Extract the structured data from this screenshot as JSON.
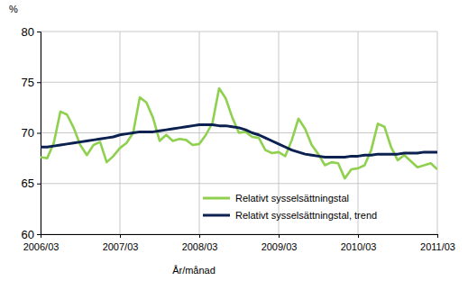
{
  "chart_data": {
    "type": "line",
    "y_label": "%",
    "x_label": "År/månad",
    "categories": [
      "2006/03",
      null,
      null,
      null,
      null,
      null,
      null,
      null,
      null,
      null,
      null,
      null,
      "2007/03",
      null,
      null,
      null,
      null,
      null,
      null,
      null,
      null,
      null,
      null,
      null,
      "2008/03",
      null,
      null,
      null,
      null,
      null,
      null,
      null,
      null,
      null,
      null,
      null,
      "2009/03",
      null,
      null,
      null,
      null,
      null,
      null,
      null,
      null,
      null,
      null,
      null,
      "2010/03",
      null,
      null,
      null,
      null,
      null,
      null,
      null,
      null,
      null,
      null,
      null,
      "2011/03"
    ],
    "series": [
      {
        "name": "Relativt sysselsättningstal",
        "color": "#8fd14f",
        "values": [
          67.6,
          67.5,
          69.0,
          72.1,
          71.8,
          70.5,
          68.8,
          67.8,
          68.8,
          69.1,
          67.1,
          67.7,
          68.5,
          69.0,
          70.0,
          73.5,
          73.0,
          71.5,
          69.2,
          69.8,
          69.2,
          69.4,
          69.3,
          68.8,
          68.9,
          69.8,
          71.0,
          74.4,
          73.4,
          71.5,
          70.0,
          70.1,
          69.6,
          69.5,
          68.3,
          68.0,
          68.1,
          67.7,
          69.3,
          71.4,
          70.4,
          68.8,
          67.9,
          66.8,
          67.1,
          67.0,
          65.5,
          66.4,
          66.5,
          66.8,
          68.3,
          70.9,
          70.6,
          68.6,
          67.3,
          67.8,
          67.2,
          66.6,
          66.8,
          67.0,
          66.4
        ]
      },
      {
        "name": "Relativt sysselsättningstal, trend",
        "color": "#0b2150",
        "values": [
          68.6,
          68.6,
          68.7,
          68.8,
          68.9,
          69.0,
          69.1,
          69.2,
          69.3,
          69.4,
          69.5,
          69.6,
          69.8,
          69.9,
          70.0,
          70.1,
          70.1,
          70.1,
          70.2,
          70.3,
          70.4,
          70.5,
          70.6,
          70.7,
          70.8,
          70.8,
          70.8,
          70.7,
          70.7,
          70.6,
          70.5,
          70.3,
          70.0,
          69.8,
          69.5,
          69.2,
          68.9,
          68.6,
          68.3,
          68.1,
          67.9,
          67.8,
          67.7,
          67.6,
          67.6,
          67.6,
          67.6,
          67.7,
          67.7,
          67.8,
          67.8,
          67.9,
          67.9,
          67.9,
          67.9,
          68.0,
          68.0,
          68.0,
          68.1,
          68.1,
          68.1
        ]
      }
    ],
    "ylim": [
      60,
      80
    ],
    "yticks": [
      60,
      65,
      70,
      75,
      80
    ],
    "grid": true,
    "legend": "lower right"
  }
}
